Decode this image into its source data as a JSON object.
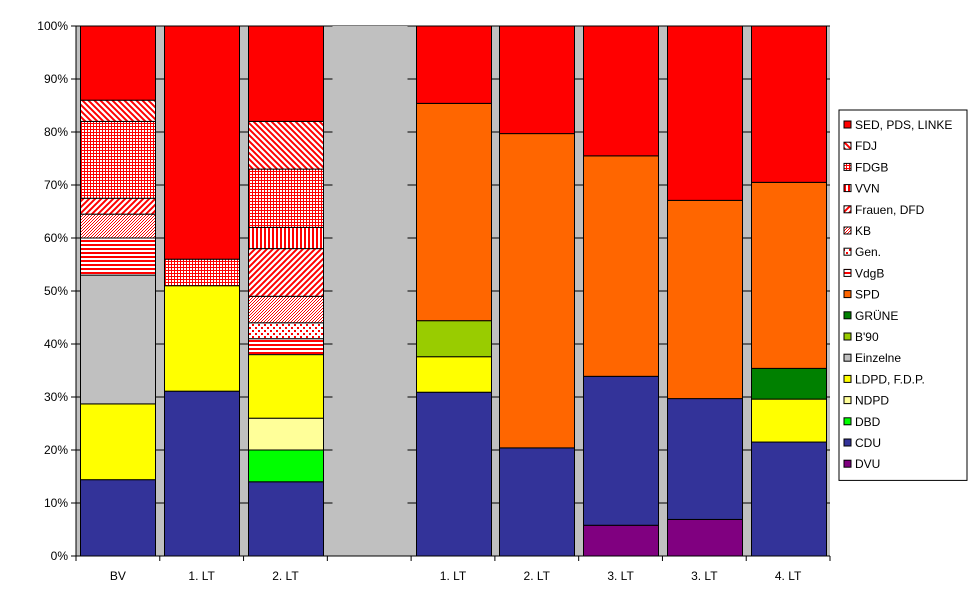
{
  "chart_data": {
    "type": "bar",
    "stacked": true,
    "percent": true,
    "grid": true,
    "legend_position": "right",
    "ylim": [
      0,
      100
    ],
    "y_ticks": [
      "0%",
      "10%",
      "20%",
      "30%",
      "40%",
      "50%",
      "60%",
      "70%",
      "80%",
      "90%",
      "100%"
    ],
    "categories": [
      "BV",
      "1. LT",
      "2. LT",
      "",
      "1. LT",
      "2. LT",
      "3. LT",
      "3. LT",
      "4. LT"
    ],
    "series": [
      {
        "name": "DVU",
        "color": "#800080",
        "pattern": "solid",
        "values": [
          0,
          0,
          0,
          0,
          0,
          0,
          5.8,
          6.9,
          0
        ]
      },
      {
        "name": "CDU",
        "color": "#333399",
        "pattern": "solid",
        "values": [
          14.4,
          31.1,
          14.0,
          0,
          30.9,
          20.4,
          28.1,
          22.8,
          21.5
        ]
      },
      {
        "name": "DBD",
        "color": "#00ff00",
        "pattern": "solid",
        "values": [
          0,
          0,
          6.0,
          0,
          0,
          0,
          0,
          0,
          0
        ]
      },
      {
        "name": "NDPD",
        "color": "#ffff99",
        "pattern": "solid",
        "values": [
          0,
          0,
          6.0,
          0,
          0,
          0,
          0,
          0,
          0
        ]
      },
      {
        "name": "LDPD, F.D.P.",
        "color": "#ffff00",
        "pattern": "solid",
        "values": [
          14.3,
          19.9,
          12.0,
          0,
          6.7,
          0,
          0,
          0,
          8.1
        ]
      },
      {
        "name": "Einzelne",
        "color": "#c0c0c0",
        "pattern": "solid",
        "values": [
          24.3,
          0,
          0,
          0,
          0,
          0,
          0,
          0,
          0
        ]
      },
      {
        "name": "B'90",
        "color": "#99cc00",
        "pattern": "solid",
        "values": [
          0,
          0,
          0,
          0,
          6.8,
          0,
          0,
          0,
          0
        ]
      },
      {
        "name": "GRÜNE",
        "color": "#008000",
        "pattern": "solid",
        "values": [
          0,
          0,
          0,
          0,
          0,
          0,
          0,
          0,
          5.8
        ]
      },
      {
        "name": "SPD",
        "color": "#ff6600",
        "pattern": "solid",
        "values": [
          0,
          0,
          0,
          0,
          41.0,
          59.3,
          41.6,
          37.4,
          35.1
        ]
      },
      {
        "name": "VdgB",
        "color": "#ff0000",
        "pattern": "hlines",
        "values": [
          7.0,
          0,
          3.0,
          0,
          0,
          0,
          0,
          0,
          0
        ]
      },
      {
        "name": "Gen.",
        "color": "#ff0000",
        "pattern": "dots",
        "values": [
          0,
          0,
          3.0,
          0,
          0,
          0,
          0,
          0,
          0
        ]
      },
      {
        "name": "KB",
        "color": "#ff0000",
        "pattern": "fine",
        "values": [
          4.5,
          0,
          5.0,
          0,
          0,
          0,
          0,
          0,
          0
        ]
      },
      {
        "name": "Frauen, DFD",
        "color": "#ff0000",
        "pattern": "diag",
        "values": [
          3.0,
          0,
          9.0,
          0,
          0,
          0,
          0,
          0,
          0
        ]
      },
      {
        "name": "VVN",
        "color": "#ff0000",
        "pattern": "vlines",
        "values": [
          0,
          0,
          4.0,
          0,
          0,
          0,
          0,
          0,
          0
        ]
      },
      {
        "name": "FDGB",
        "color": "#ff0000",
        "pattern": "grid",
        "values": [
          14.5,
          5.0,
          11.0,
          0,
          0,
          0,
          0,
          0,
          0
        ]
      },
      {
        "name": "FDJ",
        "color": "#ff0000",
        "pattern": "backdiag",
        "values": [
          4.0,
          0,
          9.0,
          0,
          0,
          0,
          0,
          0,
          0
        ]
      },
      {
        "name": "SED, PDS, LINKE",
        "color": "#ff0000",
        "pattern": "solid",
        "values": [
          14.0,
          44.0,
          18.0,
          0,
          14.6,
          20.3,
          24.5,
          32.9,
          29.5
        ]
      }
    ],
    "empty_category_fill": "#c0c0c0"
  }
}
